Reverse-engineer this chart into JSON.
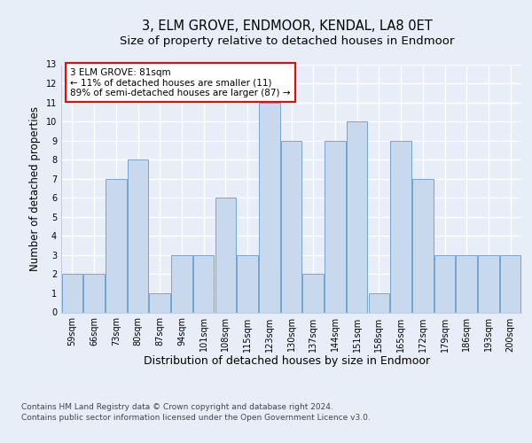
{
  "title": "3, ELM GROVE, ENDMOOR, KENDAL, LA8 0ET",
  "subtitle": "Size of property relative to detached houses in Endmoor",
  "xlabel": "Distribution of detached houses by size in Endmoor",
  "ylabel": "Number of detached properties",
  "categories": [
    "59sqm",
    "66sqm",
    "73sqm",
    "80sqm",
    "87sqm",
    "94sqm",
    "101sqm",
    "108sqm",
    "115sqm",
    "123sqm",
    "130sqm",
    "137sqm",
    "144sqm",
    "151sqm",
    "158sqm",
    "165sqm",
    "172sqm",
    "179sqm",
    "186sqm",
    "193sqm",
    "200sqm"
  ],
  "values": [
    2,
    2,
    7,
    8,
    1,
    3,
    3,
    6,
    3,
    11,
    9,
    2,
    9,
    10,
    1,
    9,
    7,
    3,
    3,
    3,
    3
  ],
  "bar_color": "#c8d8ed",
  "bar_edge_color": "#6699cc",
  "annotation_text": "3 ELM GROVE: 81sqm\n← 11% of detached houses are smaller (11)\n89% of semi-detached houses are larger (87) →",
  "annotation_box_color": "white",
  "annotation_box_edge_color": "red",
  "ylim": [
    0,
    13
  ],
  "yticks": [
    0,
    1,
    2,
    3,
    4,
    5,
    6,
    7,
    8,
    9,
    10,
    11,
    12,
    13
  ],
  "footer_line1": "Contains HM Land Registry data © Crown copyright and database right 2024.",
  "footer_line2": "Contains public sector information licensed under the Open Government Licence v3.0.",
  "background_color": "#e8eef8",
  "plot_bg_color": "#e8eef8",
  "grid_color": "#ffffff",
  "title_fontsize": 10.5,
  "subtitle_fontsize": 9.5,
  "ylabel_fontsize": 8.5,
  "xlabel_fontsize": 9,
  "tick_fontsize": 7,
  "annotation_fontsize": 7.5,
  "footer_fontsize": 6.5
}
